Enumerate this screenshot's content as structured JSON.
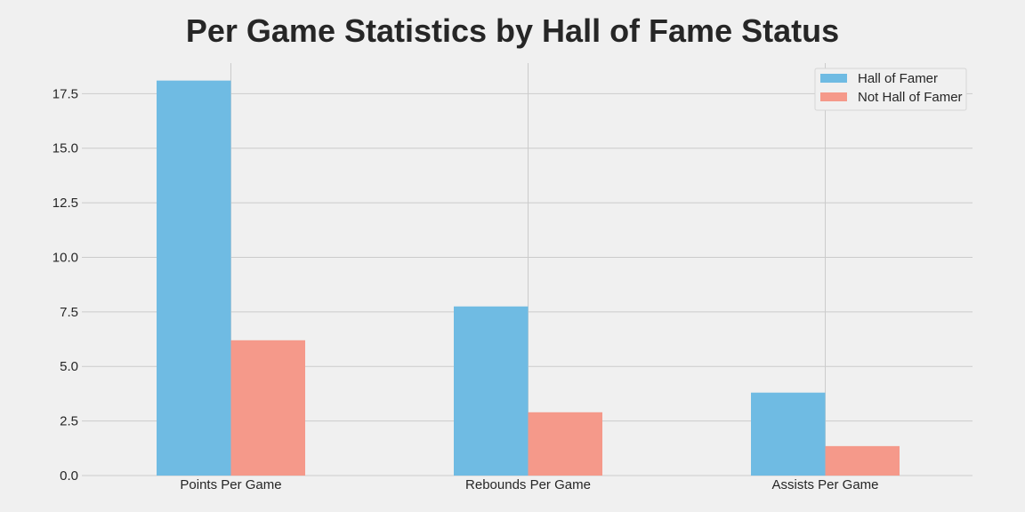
{
  "chart_data": {
    "type": "bar",
    "title": "Per Game Statistics by Hall of Fame Status",
    "xlabel": "",
    "ylabel": "",
    "categories": [
      "Points Per Game",
      "Rebounds Per Game",
      "Assists Per Game"
    ],
    "series": [
      {
        "name": "Hall of Famer",
        "values": [
          18.1,
          7.75,
          3.8
        ],
        "color": "#6fbbe3"
      },
      {
        "name": "Not Hall of Famer",
        "values": [
          6.2,
          2.9,
          1.35
        ],
        "color": "#f5998a"
      }
    ],
    "ylim": [
      0,
      18.9
    ],
    "yticks": [
      "0.0",
      "2.5",
      "5.0",
      "7.5",
      "10.0",
      "12.5",
      "15.0",
      "17.5"
    ],
    "grid": true,
    "legend_position": "top-right"
  }
}
